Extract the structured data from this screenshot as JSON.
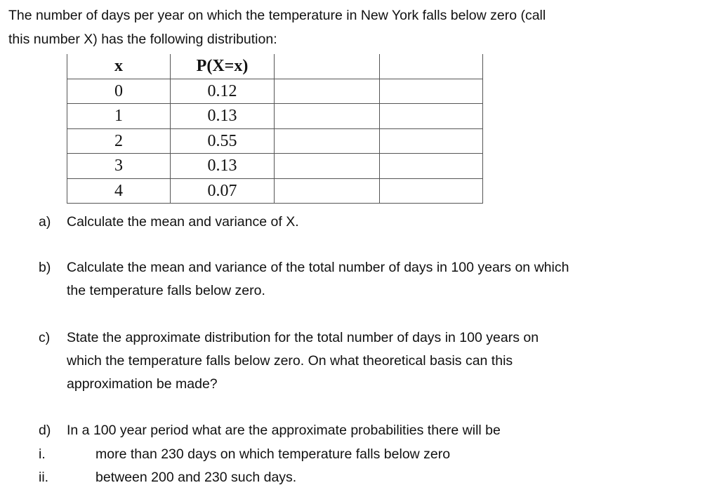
{
  "intro": [
    "The number of days per year on which the temperature in New York falls below zero (call",
    "this number X) has the following distribution:"
  ],
  "table": {
    "headers": [
      "x",
      "P(X=x)",
      "",
      ""
    ],
    "rows": [
      [
        "0",
        "0.12"
      ],
      [
        "1",
        "0.13"
      ],
      [
        "2",
        "0.55"
      ],
      [
        "3",
        "0.13"
      ],
      [
        "4",
        "0.07"
      ]
    ]
  },
  "questions": [
    {
      "label": "a)",
      "lines": [
        "Calculate the mean and variance of X."
      ]
    },
    {
      "label": "b)",
      "lines": [
        "Calculate the mean and variance of the total number of days in 100 years on which",
        "the temperature falls below zero."
      ]
    },
    {
      "label": "c)",
      "lines": [
        "State the approximate distribution for the total number of days in 100 years on",
        "which the temperature falls below zero. On what theoretical basis can this",
        "approximation be made?"
      ]
    },
    {
      "label": "d)",
      "lines": [
        "In a 100 year period what are the approximate probabilities there will be"
      ]
    }
  ],
  "subparts": [
    {
      "label": "i.",
      "text": "more than 230 days on which temperature falls below zero"
    },
    {
      "label": "ii.",
      "text": "between 200 and 230 such days."
    }
  ]
}
